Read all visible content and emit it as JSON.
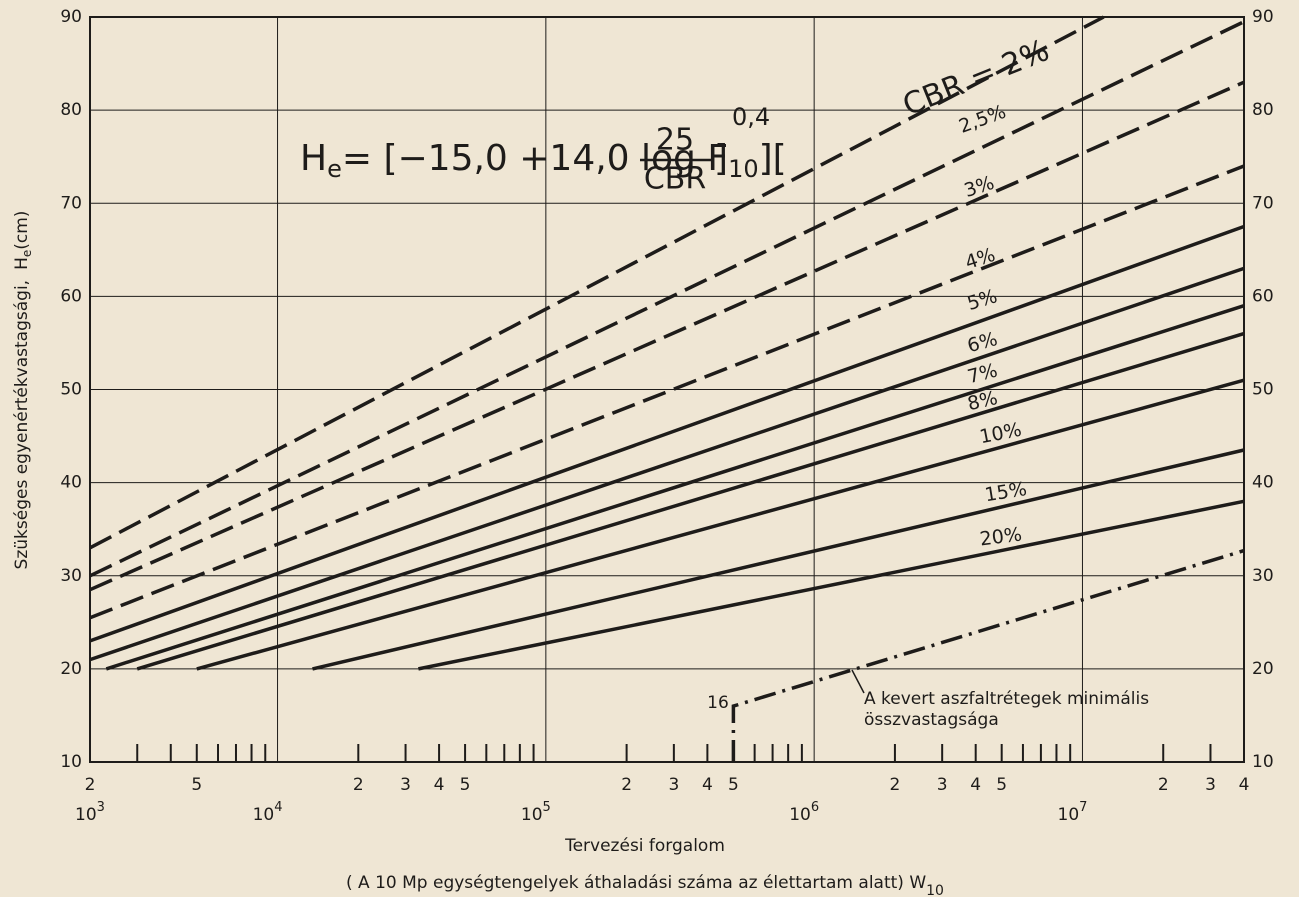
{
  "chart_data": {
    "type": "line",
    "xscale": "log",
    "color": "#1e1c1a",
    "background": "#efe6d4",
    "grid": true,
    "xlim": [
      2000,
      40000000
    ],
    "ylim": [
      10,
      90
    ],
    "yticks": [
      10,
      20,
      30,
      40,
      50,
      60,
      70,
      80,
      90
    ],
    "xticks": [
      {
        "value": 2000,
        "label": "2"
      },
      {
        "value": 5000,
        "label": "5"
      },
      {
        "value": 20000,
        "label": "2"
      },
      {
        "value": 30000,
        "label": "3"
      },
      {
        "value": 40000,
        "label": "4"
      },
      {
        "value": 50000,
        "label": "5"
      },
      {
        "value": 200000,
        "label": "2"
      },
      {
        "value": 300000,
        "label": "3"
      },
      {
        "value": 400000,
        "label": "4"
      },
      {
        "value": 500000,
        "label": "5"
      },
      {
        "value": 2000000,
        "label": "2"
      },
      {
        "value": 3000000,
        "label": "3"
      },
      {
        "value": 4000000,
        "label": "4"
      },
      {
        "value": 5000000,
        "label": "5"
      },
      {
        "value": 20000000,
        "label": "2"
      },
      {
        "value": 30000000,
        "label": "3"
      },
      {
        "value": 40000000,
        "label": "4"
      }
    ],
    "xticks_minor": [
      3000,
      4000,
      6000,
      7000,
      8000,
      9000,
      60000,
      70000,
      80000,
      90000,
      600000,
      700000,
      800000,
      900000,
      6000000,
      7000000,
      8000000,
      9000000
    ],
    "decades": [
      {
        "value": 1000,
        "base": "10",
        "exp": "3"
      },
      {
        "value": 10000,
        "base": "10",
        "exp": "4"
      },
      {
        "value": 100000,
        "base": "10",
        "exp": "5"
      },
      {
        "value": 1000000,
        "base": "10",
        "exp": "6"
      },
      {
        "value": 10000000,
        "base": "10",
        "exp": "7"
      }
    ],
    "ylabel": "Szükséges egyenértékvastagsági,",
    "ylabel_symbol": "H",
    "ylabel_sub": "e",
    "ylabel_unit": "(cm)",
    "xlabel": "Tervezési forgalom",
    "xlabel2": "( A 10 Mp egységtengelyek áthaladási száma az élettartam alatt) W",
    "xlabel2_sub": "10",
    "formula": {
      "lhs": "H",
      "lhs_sub": "e",
      "mid": "= [−15,0 +14,0 log F",
      "mid_sub": "10",
      "open": "][",
      "numerator": "25",
      "denominator": "CBR",
      "close": "]",
      "exponent": "0,4"
    },
    "series": [
      {
        "name": "CBR = 2%",
        "style": "dashed",
        "x": [
          2000,
          12000000
        ],
        "values": [
          33,
          90
        ]
      },
      {
        "name": "2,5%",
        "style": "dashed",
        "x": [
          2000,
          40000000
        ],
        "values": [
          30,
          89.5
        ]
      },
      {
        "name": "3%",
        "style": "dashed",
        "x": [
          2000,
          40000000
        ],
        "values": [
          28.5,
          83
        ]
      },
      {
        "name": "4%",
        "style": "dashed",
        "x": [
          2000,
          40000000
        ],
        "values": [
          25.5,
          74
        ]
      },
      {
        "name": "5%",
        "style": "solid",
        "x": [
          2000,
          40000000
        ],
        "values": [
          23,
          67.5
        ]
      },
      {
        "name": "6%",
        "style": "solid",
        "x": [
          2000,
          40000000
        ],
        "values": [
          21,
          63
        ]
      },
      {
        "name": "7%",
        "style": "solid",
        "x": [
          2300,
          40000000
        ],
        "values": [
          20,
          59
        ]
      },
      {
        "name": "8%",
        "style": "solid",
        "x": [
          3000,
          40000000
        ],
        "values": [
          20,
          56
        ]
      },
      {
        "name": "10%",
        "style": "solid",
        "x": [
          5000,
          40000000
        ],
        "values": [
          20,
          51
        ]
      },
      {
        "name": "15%",
        "style": "solid",
        "x": [
          13500,
          40000000
        ],
        "values": [
          20,
          43.5
        ]
      },
      {
        "name": "20%",
        "style": "solid",
        "x": [
          33500,
          40000000
        ],
        "values": [
          20,
          38
        ]
      },
      {
        "name": "A kevert aszfaltrétegek minimális",
        "name2": "összvastagsága",
        "style": "dashdot",
        "x": [
          500000,
          500000,
          40000000
        ],
        "values": [
          10,
          16,
          32.7
        ],
        "annotation": "16"
      }
    ]
  }
}
